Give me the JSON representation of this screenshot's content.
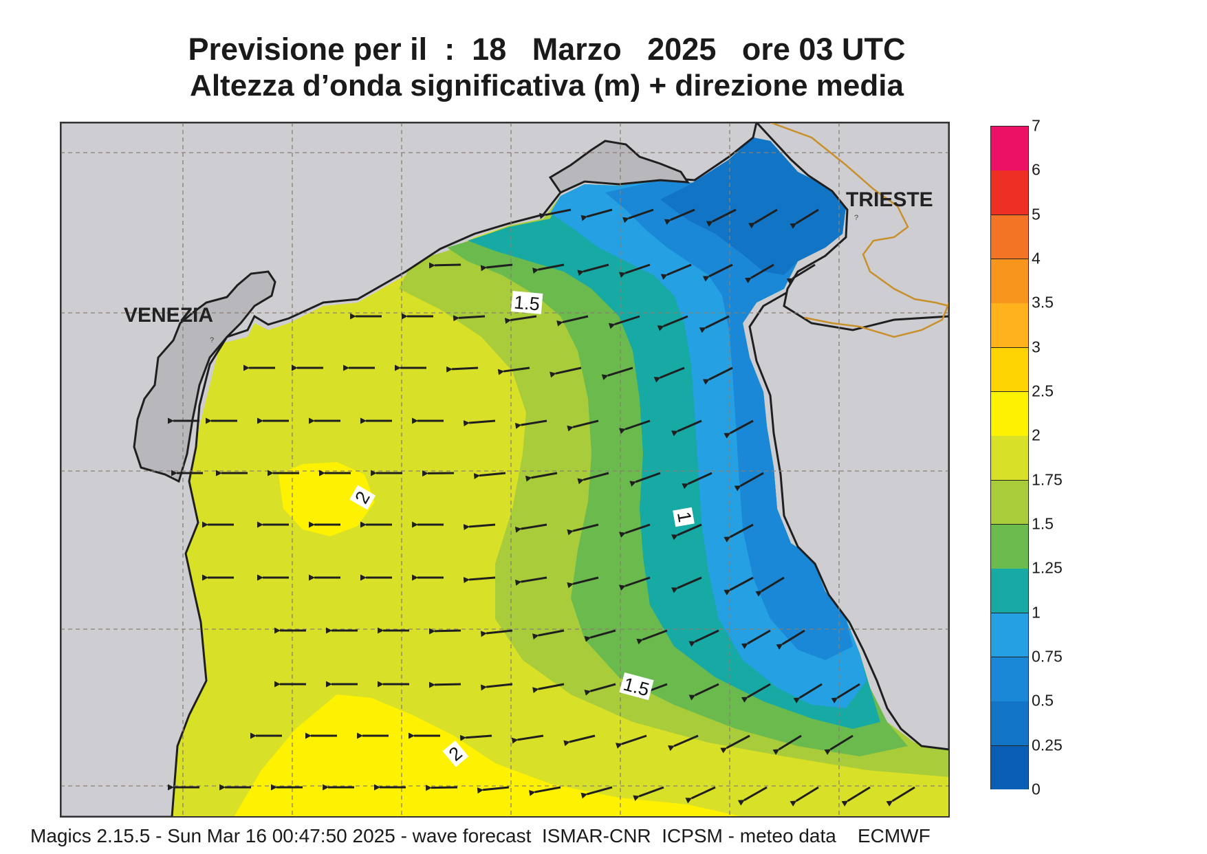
{
  "title_line1": "Previsione per il  :  18   Marzo   2025   ore 03 UTC",
  "title_line2": "Altezza d’onda significativa (m) + direzione media",
  "footer": "Magics 2.15.5 - Sun Mar 16 00:47:50 2025 - wave forecast  ISMAR-CNR  ICPSM - meteo data    ECMWF",
  "cities": {
    "venezia": "VENEZIA",
    "trieste": "TRIESTE"
  },
  "contour_labels": [
    "1.5",
    "2",
    "1",
    "1.5",
    "2"
  ],
  "colorbar": {
    "labels": [
      "0",
      "0.25",
      "0.5",
      "0.75",
      "1",
      "1.25",
      "1.5",
      "1.75",
      "2",
      "2.5",
      "3",
      "3.5",
      "4",
      "5",
      "6",
      "7"
    ],
    "colors": [
      "#0a5fb4",
      "#1274c4",
      "#1a88d6",
      "#25a0e2",
      "#17a9a4",
      "#6aba4e",
      "#a8cc3a",
      "#d9e028",
      "#fff200",
      "#ffd400",
      "#ffb21c",
      "#f8951d",
      "#f27424",
      "#ee2f24",
      "#ed1165"
    ]
  },
  "colors": {
    "land": "#cdcdd2",
    "lagoon": "#b8b8bc",
    "border": "#c9902a",
    "coast": "#1f1f1f",
    "arrow": "#1f1f1f",
    "grid": "#8a7f70"
  }
}
